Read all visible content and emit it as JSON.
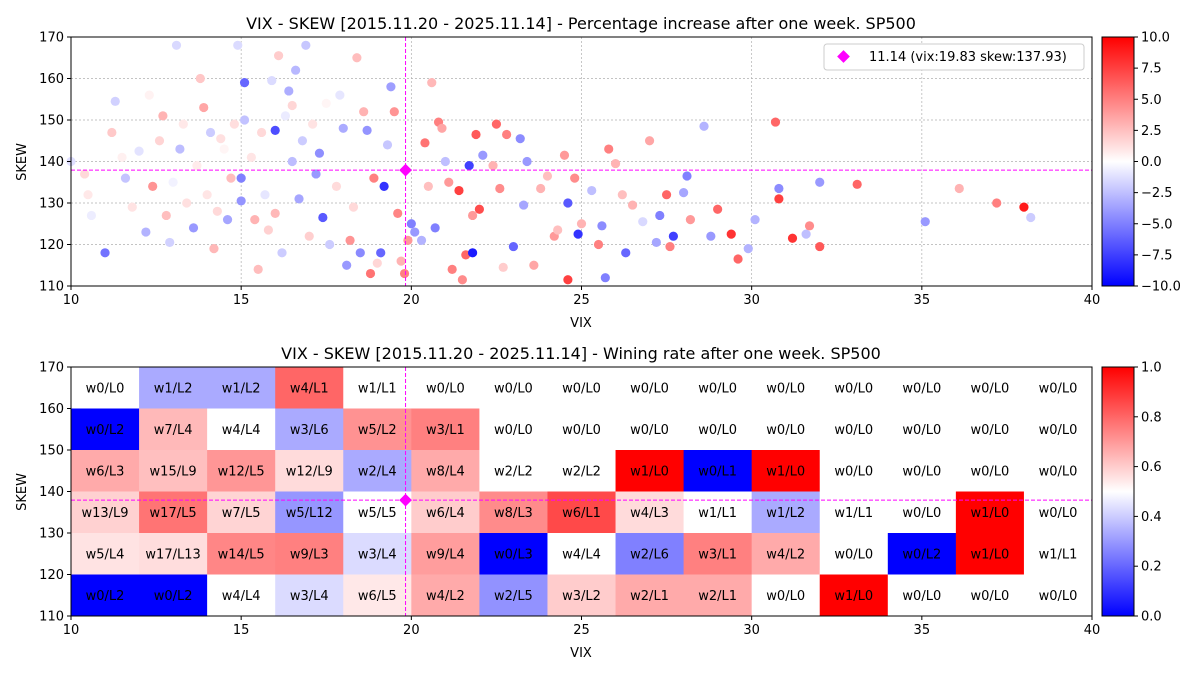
{
  "chart_data": [
    {
      "type": "scatter",
      "title": "VIX - SKEW [2015.11.20 - 2025.11.14]  - Percentage increase after one week. SP500",
      "xlabel": "VIX",
      "ylabel": "SKEW",
      "xlim": [
        10,
        40
      ],
      "ylim": [
        110,
        170
      ],
      "xticks": [
        10,
        15,
        20,
        25,
        30,
        35,
        40
      ],
      "yticks": [
        110,
        120,
        130,
        140,
        150,
        160,
        170
      ],
      "grid": true,
      "colorbar": {
        "min": -10,
        "max": 10,
        "ticks": [
          "10.0",
          "7.5",
          "5.0",
          "2.5",
          "0.0",
          "−2.5",
          "−5.0",
          "−7.5",
          "−10.0"
        ]
      },
      "current": {
        "vix": 19.83,
        "skew": 137.93,
        "label": "11.14 (vix:19.83 skew:137.93)"
      },
      "legend_position": "top-right",
      "points": [
        [
          10.0,
          140.0,
          -1.2
        ],
        [
          10.4,
          137.0,
          1.5
        ],
        [
          10.6,
          127.0,
          -0.7
        ],
        [
          10.5,
          132.0,
          0.9
        ],
        [
          11.0,
          118.0,
          -5.5
        ],
        [
          11.2,
          147.0,
          2.1
        ],
        [
          11.3,
          154.5,
          -1.8
        ],
        [
          11.5,
          141.0,
          0.6
        ],
        [
          11.6,
          136.0,
          -2.3
        ],
        [
          11.8,
          129.0,
          1.1
        ],
        [
          12.0,
          142.5,
          -1.1
        ],
        [
          12.2,
          123.0,
          -3.0
        ],
        [
          12.3,
          156.0,
          0.5
        ],
        [
          12.4,
          134.0,
          4.2
        ],
        [
          12.6,
          145.0,
          1.7
        ],
        [
          12.7,
          151.0,
          3.0
        ],
        [
          12.8,
          127.0,
          2.5
        ],
        [
          13.0,
          135.0,
          -0.5
        ],
        [
          13.1,
          168.0,
          -1.5
        ],
        [
          13.2,
          143.0,
          -2.6
        ],
        [
          13.4,
          130.0,
          1.2
        ],
        [
          13.6,
          124.0,
          -4.0
        ],
        [
          13.7,
          139.0,
          0.8
        ],
        [
          13.8,
          160.0,
          2.2
        ],
        [
          13.9,
          153.0,
          3.5
        ],
        [
          14.0,
          132.0,
          1.0
        ],
        [
          14.1,
          147.0,
          -2.0
        ],
        [
          14.2,
          119.0,
          2.8
        ],
        [
          14.3,
          128.0,
          1.5
        ],
        [
          14.5,
          143.0,
          0.4
        ],
        [
          14.6,
          126.0,
          -3.5
        ],
        [
          14.7,
          136.0,
          2.6
        ],
        [
          14.8,
          149.0,
          1.3
        ],
        [
          14.9,
          168.0,
          -1.4
        ],
        [
          15.0,
          136.0,
          -5.0
        ],
        [
          15.0,
          130.5,
          -4.2
        ],
        [
          15.1,
          150.0,
          -2.4
        ],
        [
          15.1,
          159.0,
          -6.0
        ],
        [
          15.3,
          141.0,
          1.0
        ],
        [
          15.4,
          126.0,
          3.0
        ],
        [
          15.5,
          114.0,
          2.6
        ],
        [
          15.6,
          147.0,
          1.5
        ],
        [
          15.7,
          132.0,
          -1.0
        ],
        [
          15.9,
          159.5,
          -1.4
        ],
        [
          16.0,
          147.5,
          -7.0
        ],
        [
          16.0,
          127.5,
          2.8
        ],
        [
          16.1,
          165.5,
          2.0
        ],
        [
          16.2,
          118.0,
          -2.0
        ],
        [
          16.3,
          151.0,
          -0.8
        ],
        [
          16.4,
          157.0,
          -3.2
        ],
        [
          16.5,
          140.0,
          -2.6
        ],
        [
          16.6,
          162.0,
          -2.8
        ],
        [
          16.7,
          131.0,
          -3.5
        ],
        [
          16.8,
          145.0,
          -2.0
        ],
        [
          16.9,
          168.0,
          -2.2
        ],
        [
          17.0,
          122.0,
          1.9
        ],
        [
          17.1,
          149.0,
          1.1
        ],
        [
          17.2,
          137.0,
          -4.0
        ],
        [
          17.3,
          142.0,
          -4.4
        ],
        [
          17.4,
          126.5,
          -6.5
        ],
        [
          17.5,
          154.0,
          0.4
        ],
        [
          17.6,
          120.0,
          -2.0
        ],
        [
          17.8,
          134.0,
          1.4
        ],
        [
          18.0,
          148.0,
          -3.3
        ],
        [
          18.1,
          115.0,
          -4.0
        ],
        [
          18.2,
          121.0,
          4.2
        ],
        [
          18.3,
          129.0,
          1.5
        ],
        [
          18.4,
          165.0,
          2.6
        ],
        [
          18.5,
          118.0,
          -4.6
        ],
        [
          18.6,
          152.0,
          3.0
        ],
        [
          18.7,
          147.5,
          -4.2
        ],
        [
          18.8,
          113.0,
          5.5
        ],
        [
          18.9,
          136.0,
          5.0
        ],
        [
          19.0,
          115.5,
          1.6
        ],
        [
          19.1,
          118.0,
          -6.0
        ],
        [
          19.2,
          134.0,
          -8.0
        ],
        [
          19.3,
          144.0,
          -2.2
        ],
        [
          19.4,
          158.0,
          -3.8
        ],
        [
          19.5,
          152.0,
          4.2
        ],
        [
          19.6,
          127.5,
          4.8
        ],
        [
          19.7,
          116.0,
          3.0
        ],
        [
          19.8,
          113.0,
          5.0
        ],
        [
          19.9,
          121.0,
          4.0
        ],
        [
          20.0,
          125.0,
          -5.0
        ],
        [
          20.1,
          123.0,
          -4.0
        ],
        [
          20.3,
          121.0,
          -3.0
        ],
        [
          20.4,
          144.5,
          5.5
        ],
        [
          20.5,
          134.0,
          2.5
        ],
        [
          20.6,
          159.0,
          2.8
        ],
        [
          20.7,
          124.0,
          -5.0
        ],
        [
          20.8,
          149.5,
          5.0
        ],
        [
          20.9,
          148.0,
          3.5
        ],
        [
          21.0,
          140.0,
          -2.5
        ],
        [
          21.1,
          135.0,
          4.0
        ],
        [
          21.2,
          114.0,
          5.0
        ],
        [
          21.4,
          133.0,
          7.5
        ],
        [
          21.5,
          111.5,
          4.5
        ],
        [
          21.6,
          117.5,
          6.0
        ],
        [
          21.7,
          139.0,
          -7.5
        ],
        [
          21.8,
          127.0,
          4.0
        ],
        [
          21.8,
          118.0,
          -9.0
        ],
        [
          21.9,
          146.5,
          6.5
        ],
        [
          22.0,
          128.5,
          7.0
        ],
        [
          22.1,
          141.5,
          -4.0
        ],
        [
          22.4,
          139.0,
          3.0
        ],
        [
          22.5,
          149.0,
          6.0
        ],
        [
          22.6,
          133.5,
          4.5
        ],
        [
          22.7,
          114.5,
          2.0
        ],
        [
          22.8,
          146.5,
          5.0
        ],
        [
          23.0,
          119.5,
          -6.0
        ],
        [
          23.2,
          145.5,
          -4.5
        ],
        [
          23.3,
          129.5,
          -3.5
        ],
        [
          23.4,
          140.0,
          -4.0
        ],
        [
          23.6,
          115.0,
          3.5
        ],
        [
          23.8,
          133.5,
          3.0
        ],
        [
          24.0,
          136.5,
          2.5
        ],
        [
          24.2,
          122.0,
          4.0
        ],
        [
          24.3,
          123.5,
          2.5
        ],
        [
          24.5,
          141.5,
          4.0
        ],
        [
          24.6,
          130.0,
          -6.5
        ],
        [
          24.6,
          111.5,
          7.5
        ],
        [
          24.8,
          136.0,
          4.5
        ],
        [
          24.9,
          122.5,
          -8.0
        ],
        [
          25.0,
          125.0,
          3.0
        ],
        [
          25.3,
          133.0,
          -2.5
        ],
        [
          25.5,
          120.0,
          5.0
        ],
        [
          25.6,
          124.5,
          -4.5
        ],
        [
          25.7,
          112.0,
          -5.0
        ],
        [
          25.8,
          143.0,
          5.0
        ],
        [
          26.0,
          139.5,
          3.0
        ],
        [
          26.2,
          132.0,
          2.5
        ],
        [
          26.3,
          118.0,
          -6.0
        ],
        [
          26.5,
          129.5,
          3.0
        ],
        [
          26.8,
          125.5,
          -1.5
        ],
        [
          27.0,
          145.0,
          3.5
        ],
        [
          27.2,
          120.5,
          -3.5
        ],
        [
          27.3,
          127.0,
          -5.0
        ],
        [
          27.5,
          132.0,
          6.0
        ],
        [
          27.6,
          119.5,
          5.0
        ],
        [
          27.7,
          122.0,
          -7.5
        ],
        [
          28.0,
          132.5,
          -3.5
        ],
        [
          28.1,
          136.5,
          -5.0
        ],
        [
          28.2,
          126.0,
          4.0
        ],
        [
          28.6,
          148.5,
          -3.0
        ],
        [
          28.8,
          122.0,
          -4.0
        ],
        [
          29.0,
          128.5,
          6.0
        ],
        [
          29.4,
          122.5,
          8.0
        ],
        [
          29.6,
          116.5,
          6.0
        ],
        [
          29.9,
          119.0,
          -3.0
        ],
        [
          30.1,
          126.0,
          -3.0
        ],
        [
          30.7,
          149.5,
          6.0
        ],
        [
          30.8,
          131.0,
          7.5
        ],
        [
          30.8,
          133.5,
          -4.5
        ],
        [
          31.2,
          121.5,
          8.0
        ],
        [
          31.6,
          122.5,
          -2.5
        ],
        [
          31.7,
          124.5,
          4.5
        ],
        [
          32.0,
          135.0,
          -4.0
        ],
        [
          32.0,
          119.5,
          6.5
        ],
        [
          33.1,
          134.5,
          6.0
        ],
        [
          35.1,
          125.5,
          -4.0
        ],
        [
          36.1,
          133.5,
          3.0
        ],
        [
          37.2,
          130.0,
          5.0
        ],
        [
          38.0,
          129.0,
          9.0
        ],
        [
          38.2,
          126.5,
          -2.0
        ],
        [
          14.4,
          145.5,
          1.2
        ],
        [
          15.8,
          123.5,
          1.8
        ],
        [
          17.9,
          156.0,
          -1.0
        ],
        [
          16.5,
          153.5,
          1.6
        ],
        [
          13.3,
          149.0,
          0.9
        ],
        [
          12.9,
          120.5,
          -1.8
        ]
      ]
    },
    {
      "type": "heatmap",
      "title": "VIX - SKEW [2015.11.20 - 2025.11.14]  - Wining rate after one week. SP500",
      "xlabel": "VIX",
      "ylabel": "SKEW",
      "xlim": [
        10,
        40
      ],
      "ylim": [
        110,
        170
      ],
      "xticks": [
        10,
        15,
        20,
        25,
        30,
        35,
        40
      ],
      "yticks": [
        110,
        120,
        130,
        140,
        150,
        160,
        170
      ],
      "x_bin_width": 2,
      "y_bin_height": 10,
      "colorbar": {
        "min": 0.0,
        "max": 1.0,
        "ticks": [
          "1.0",
          "0.8",
          "0.6",
          "0.4",
          "0.2",
          "0.0"
        ]
      },
      "current": {
        "vix": 19.83,
        "skew": 137.93
      },
      "rows_top_to_bottom": [
        [
          "w0/L0",
          "w1/L2",
          "w1/L2",
          "w4/L1",
          "w1/L1",
          "w0/L0",
          "w0/L0",
          "w0/L0",
          "w0/L0",
          "w0/L0",
          "w0/L0",
          "w0/L0",
          "w0/L0",
          "w0/L0",
          "w0/L0"
        ],
        [
          "w0/L2",
          "w7/L4",
          "w4/L4",
          "w3/L6",
          "w5/L2",
          "w3/L1",
          "w0/L0",
          "w0/L0",
          "w0/L0",
          "w0/L0",
          "w0/L0",
          "w0/L0",
          "w0/L0",
          "w0/L0",
          "w0/L0"
        ],
        [
          "w6/L3",
          "w15/L9",
          "w12/L5",
          "w12/L9",
          "w2/L4",
          "w8/L4",
          "w2/L2",
          "w2/L2",
          "w1/L0",
          "w0/L1",
          "w1/L0",
          "w0/L0",
          "w0/L0",
          "w0/L0",
          "w0/L0"
        ],
        [
          "w13/L9",
          "w17/L5",
          "w7/L5",
          "w5/L12",
          "w5/L5",
          "w6/L4",
          "w8/L3",
          "w6/L1",
          "w4/L3",
          "w1/L1",
          "w1/L2",
          "w1/L1",
          "w0/L0",
          "w1/L0",
          "w0/L0"
        ],
        [
          "w5/L4",
          "w17/L13",
          "w14/L5",
          "w9/L3",
          "w3/L4",
          "w9/L4",
          "w0/L3",
          "w4/L4",
          "w2/L6",
          "w3/L1",
          "w4/L2",
          "w0/L0",
          "w0/L2",
          "w1/L0",
          "w1/L1"
        ],
        [
          "w0/L2",
          "w0/L2",
          "w4/L4",
          "w3/L4",
          "w6/L5",
          "w4/L2",
          "w2/L5",
          "w3/L2",
          "w2/L1",
          "w2/L1",
          "w0/L0",
          "w1/L0",
          "w0/L0",
          "w0/L0",
          "w0/L0"
        ]
      ]
    }
  ]
}
